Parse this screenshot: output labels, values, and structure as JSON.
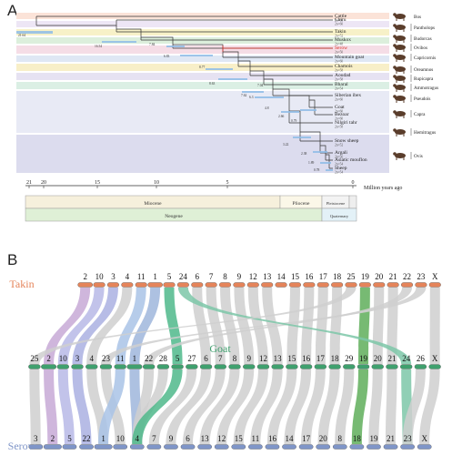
{
  "panelA": {
    "label": "A",
    "tree": {
      "taxa": [
        {
          "name": "Cattle",
          "chrom": "2n=60"
        },
        {
          "name": "Chiru",
          "chrom": "2n=60"
        },
        {
          "name": "Takin",
          "chrom": "2n=52"
        },
        {
          "name": "Muskox",
          "chrom": "2n=48"
        },
        {
          "name": "Serow",
          "chrom": "2n=50",
          "highlight": "#d93025"
        },
        {
          "name": "Mountain goat",
          "chrom": "2n=60"
        },
        {
          "name": "Chamois",
          "chrom": "2n=58"
        },
        {
          "name": "Aoudad",
          "chrom": "2n=58"
        },
        {
          "name": "Bharal",
          "chrom": "2n=54"
        },
        {
          "name": "Siberian ibex",
          "chrom": "2n=60"
        },
        {
          "name": "Goat",
          "chrom": "2n=60"
        },
        {
          "name": "Bezoar",
          "chrom": "2n=60"
        },
        {
          "name": "Nilgiri tahr",
          "chrom": "2n=58"
        },
        {
          "name": "Snow sheep",
          "chrom": "2n=52"
        },
        {
          "name": "Argali",
          "chrom": "2n=56"
        },
        {
          "name": "Asiatic mouflon",
          "chrom": "2n=54"
        },
        {
          "name": "Sheep",
          "chrom": "2n=54"
        }
      ],
      "node_ages": [
        "21.64",
        "16.54",
        "7.84",
        "6.83",
        "8.77",
        "8.63",
        "7.62",
        "6.3",
        "7.04",
        "4.8",
        "2.66",
        "0.79",
        "3.22",
        "2.38",
        "1.89",
        "0.78"
      ],
      "genera": [
        "Bos",
        "Pantholops",
        "Budorcas",
        "Ovibos",
        "Capricornis",
        "Oreamnos",
        "Rupicapra",
        "Ammotragus",
        "Pseudois",
        "Capra",
        "Hemitragus",
        "Ovis"
      ]
    },
    "timescale": {
      "ticks": [
        "21",
        "20",
        "15",
        "10",
        "5",
        "0"
      ],
      "unit": "Million years ago",
      "epochs": [
        "Miocene",
        "Pliocene",
        "Pleistocene"
      ],
      "periods": [
        "Neogene",
        "Quaternary"
      ]
    }
  },
  "panelB": {
    "label": "B",
    "rows": [
      {
        "species": "Takin",
        "color": "#e5845a",
        "chromosomes": [
          "2",
          "10",
          "3",
          "4",
          "11",
          "1",
          "5",
          "24",
          "6",
          "7",
          "8",
          "9",
          "12",
          "13",
          "14",
          "15",
          "16",
          "17",
          "18",
          "25",
          "19",
          "20",
          "21",
          "22",
          "23",
          "X"
        ]
      },
      {
        "species": "Goat",
        "color": "#3fa06e",
        "chromosomes": [
          "25",
          "2",
          "10",
          "3",
          "4",
          "23",
          "11",
          "1",
          "22",
          "28",
          "5",
          "27",
          "6",
          "7",
          "8",
          "9",
          "12",
          "13",
          "15",
          "16",
          "17",
          "18",
          "29",
          "19",
          "20",
          "21",
          "24",
          "26",
          "X"
        ]
      },
      {
        "species": "Serow",
        "color": "#7f95c8",
        "chromosomes": [
          "3",
          "2",
          "5",
          "22",
          "1",
          "10",
          "4",
          "7",
          "9",
          "6",
          "13",
          "12",
          "15",
          "11",
          "16",
          "14",
          "17",
          "20",
          "8",
          "18",
          "19",
          "21",
          "23",
          "X"
        ]
      }
    ]
  }
}
